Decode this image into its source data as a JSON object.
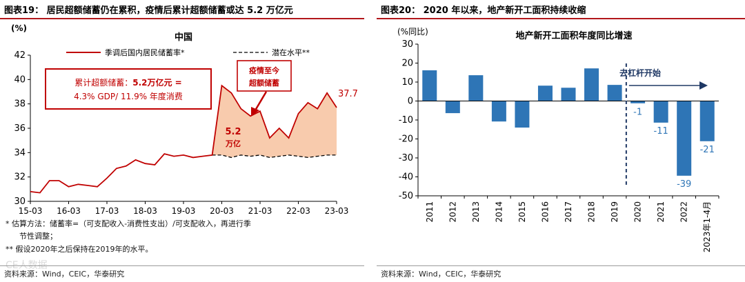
{
  "left": {
    "figure_title": "图表19：  居民超额储蓄仍在累积，疫情后累计超额储蓄或达 5.2 万亿元",
    "notes": [
      "* 估算方法：储蓄率=（可支配收入-消费性支出）/可支配收入，再进行季",
      "节性调整；",
      "** 假设2020年之后保持在2019年的水平。"
    ],
    "source": "资料来源：Wind，CEIC，华泰研究",
    "watermark": "CE人数据",
    "chart_data": {
      "type": "line",
      "title": "中国",
      "ylabel": "(%)",
      "ylim": [
        30,
        42
      ],
      "yticks": [
        30,
        32,
        34,
        36,
        38,
        40,
        42
      ],
      "xticks": [
        "15-03",
        "16-03",
        "17-03",
        "18-03",
        "19-03",
        "20-03",
        "21-03",
        "22-03",
        "23-03"
      ],
      "series": [
        {
          "name": "季调后国内居民储蓄率*",
          "color": "#c00000",
          "values": [
            30.8,
            30.7,
            31.7,
            31.7,
            31.2,
            31.4,
            31.3,
            31.2,
            31.9,
            32.7,
            32.9,
            33.4,
            33.1,
            33.0,
            33.9,
            33.7,
            33.8,
            33.6,
            33.7,
            33.8,
            39.5,
            38.9,
            37.6,
            37.0,
            37.4,
            35.2,
            36.0,
            35.2,
            37.2,
            38.1,
            37.6,
            38.9,
            37.7
          ]
        },
        {
          "name": "潜在水平**",
          "color": "#000000",
          "values": [
            null,
            null,
            null,
            null,
            null,
            null,
            null,
            null,
            null,
            null,
            null,
            null,
            null,
            null,
            null,
            null,
            null,
            null,
            null,
            33.8,
            33.8,
            33.6,
            33.8,
            33.7,
            33.8,
            33.6,
            33.7,
            33.8,
            33.7,
            33.6,
            33.7,
            33.8,
            33.8
          ]
        }
      ],
      "last_value_label": "37.7",
      "area_label": [
        "5.2",
        "万亿"
      ],
      "annotation_box": {
        "line1_prefix": "累计超额储蓄：",
        "line1_value": "5.2万亿元 =",
        "line2": "4.3% GDP/  11.9% 年度消费"
      },
      "callout": [
        "疫情至今",
        "超额储蓄"
      ]
    }
  },
  "right": {
    "figure_title": "图表20：  2020 年以来，地产新开工面积持续收缩",
    "source": "资料来源：Wind，CEIC，华泰研究",
    "chart_data": {
      "type": "bar",
      "title": "地产新开工面积年度同比增速",
      "ylabel": "(%同比)",
      "ylim": [
        -50,
        30
      ],
      "yticks": [
        -50,
        -40,
        -30,
        -20,
        -10,
        0,
        10,
        20,
        30
      ],
      "categories": [
        "2011",
        "2012",
        "2013",
        "2014",
        "2015",
        "2016",
        "2017",
        "2018",
        "2019",
        "2020",
        "2021",
        "2022",
        "2023年1-4月"
      ],
      "values": [
        16.2,
        -6.4,
        13.6,
        -10.8,
        -14.0,
        8.1,
        7.0,
        17.2,
        8.5,
        -1.2,
        -11.4,
        -39.4,
        -21.2
      ],
      "labels": [
        "",
        "",
        "",
        "",
        "",
        "",
        "",
        "",
        "",
        "-1",
        "-11",
        "-39",
        "-21"
      ],
      "bar_color": "#2e75b6",
      "label_color": "#2e75b6",
      "annotation": "去杠杆开始"
    }
  }
}
